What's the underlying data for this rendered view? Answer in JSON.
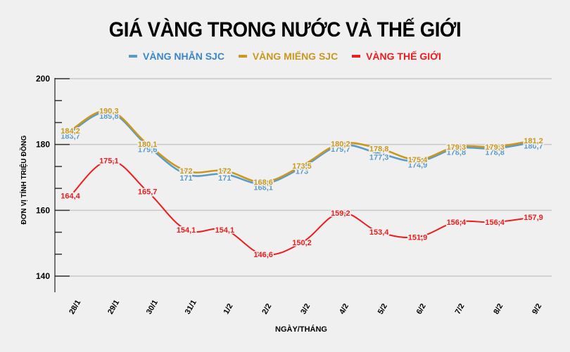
{
  "chart_data": {
    "type": "line",
    "title": "GIÁ VÀNG TRONG NƯỚC VÀ THẾ GIỚI",
    "xlabel": "NGÀY/THÁNG",
    "ylabel": "ĐƠN VỊ TÍNH TRIỆU ĐỒNG",
    "ylim": [
      140,
      200
    ],
    "yticks": [
      140,
      160,
      180,
      200
    ],
    "grid": true,
    "legend_position": "top",
    "categories": [
      "28/1",
      "29/1",
      "30/1",
      "31/1",
      "1/2",
      "2/2",
      "3/2",
      "4/2",
      "5/2",
      "6/2",
      "7/2",
      "8/2",
      "9/2"
    ],
    "series": [
      {
        "name": "VÀNG NHẪN SJC",
        "color": "#5b9bc8",
        "values": [
          183.7,
          189.8,
          179.6,
          171,
          171,
          168.1,
          173,
          179.7,
          177.3,
          174.9,
          178.8,
          178.8,
          180.7
        ],
        "labels": [
          "183,7",
          "189,8",
          "179,6",
          "171",
          "171",
          "168,1",
          "173",
          "179,7",
          "177,3",
          "174,9",
          "178,8",
          "178,8",
          "180,7"
        ]
      },
      {
        "name": "VÀNG MIẾNG SJC",
        "color": "#c9981e",
        "values": [
          184.2,
          190.3,
          180.1,
          172,
          172,
          168.6,
          173.5,
          180.2,
          178.8,
          175.4,
          179.3,
          179.3,
          181.2
        ],
        "labels": [
          "184,2",
          "190,3",
          "180,1",
          "172",
          "172",
          "168,6",
          "173,5",
          "180,2",
          "178,8",
          "175,4",
          "179,3",
          "179,3",
          "181,2"
        ]
      },
      {
        "name": "VÀNG THẾ GIỚI",
        "color": "#ee1c1c",
        "values": [
          164.4,
          175.1,
          165.7,
          154.1,
          154.1,
          146.6,
          150.2,
          159.2,
          153.4,
          151.9,
          156.4,
          156.4,
          157.9
        ],
        "labels": [
          "164,4",
          "175,1",
          "165,7",
          "154,1",
          "154,1",
          "146,6",
          "150,2",
          "159,2",
          "153,4",
          "151,9",
          "156,4",
          "156,4",
          "157,9"
        ]
      }
    ]
  },
  "header": {
    "title": "GIÁ VÀNG TRONG NƯỚC VÀ THẾ GIỚI"
  },
  "legend": [
    {
      "label": "VÀNG NHẪN SJC",
      "color": "#5b9bc8"
    },
    {
      "label": "VÀNG MIẾNG SJC",
      "color": "#c9981e"
    },
    {
      "label": "VÀNG THẾ GIỚI",
      "color": "#ee1c1c"
    }
  ],
  "axes": {
    "xlabel": "NGÀY/THÁNG",
    "ylabel": "ĐƠN VỊ TÍNH TRIỆU ĐỒNG"
  }
}
